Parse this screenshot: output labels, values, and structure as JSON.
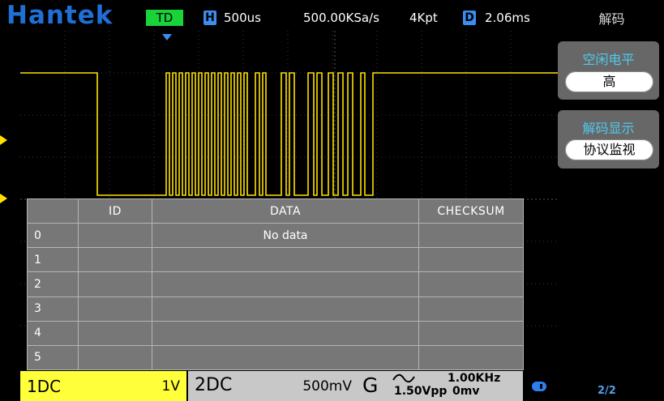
{
  "top": {
    "logo": "Hantek",
    "mode": "TD",
    "h_badge": "H",
    "timebase": "500us",
    "sample_rate": "500.00KSa/s",
    "memory_depth": "4Kpt",
    "d_badge": "D",
    "trigger_delay": "2.06ms"
  },
  "markers": {
    "trigger_level": "T",
    "channel1": "1"
  },
  "decode_table": {
    "headers": [
      "",
      "ID",
      "DATA",
      "CHECKSUM"
    ],
    "rows": [
      {
        "index": "0",
        "id": "",
        "data": "No data",
        "checksum": ""
      },
      {
        "index": "1",
        "id": "",
        "data": "",
        "checksum": ""
      },
      {
        "index": "2",
        "id": "",
        "data": "",
        "checksum": ""
      },
      {
        "index": "3",
        "id": "",
        "data": "",
        "checksum": ""
      },
      {
        "index": "4",
        "id": "",
        "data": "",
        "checksum": ""
      },
      {
        "index": "5",
        "id": "",
        "data": "",
        "checksum": ""
      }
    ]
  },
  "menu": {
    "title": "解码",
    "idle_level_label": "空闲电平",
    "idle_level_value": "高",
    "decode_display_label": "解码显示",
    "decode_display_value": "协议监视",
    "page": "2/2"
  },
  "bottom": {
    "ch1_name": "1DC",
    "ch1_scale": "1V",
    "ch2_name": "2DC",
    "ch2_scale": "500mV",
    "gen_label": "G",
    "gen_freq": "1.00KHz",
    "gen_amplitude": "1.50Vpp",
    "gen_offset": "0mv"
  },
  "colors": {
    "channel1": "#ffff3a",
    "trace": "#ffe200",
    "accent_blue": "#3b8ef0",
    "mode_green": "#18d33a",
    "menu_label": "#4fc9ec"
  }
}
